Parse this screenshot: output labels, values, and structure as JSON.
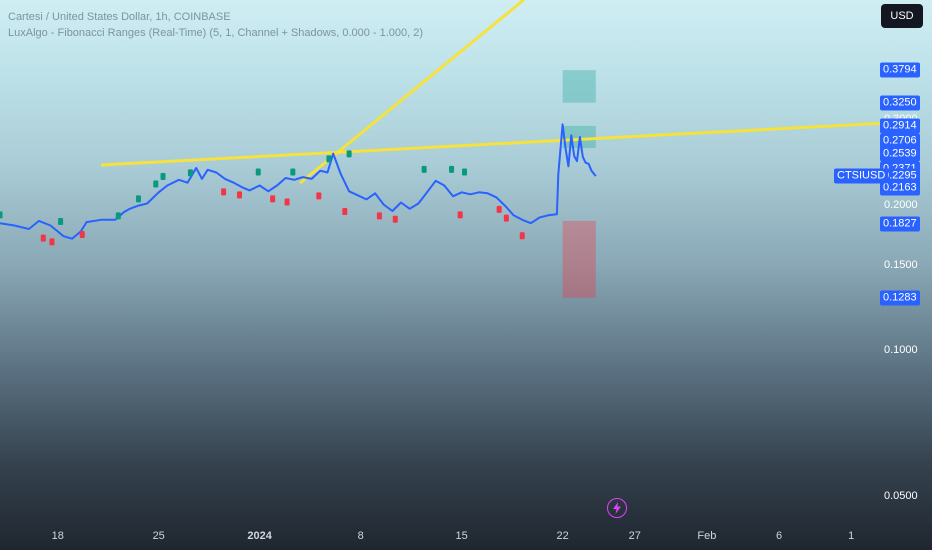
{
  "header": {
    "title": "Cartesi / United States Dollar, 1h, COINBASE",
    "indicator": "LuxAlgo - Fibonacci Ranges (Real-Time) (5, 1, Channel + Shadows, 0.000 - 1.000, 2)"
  },
  "currency_button": "USD",
  "colors": {
    "price_line": "#2962ff",
    "trendline": "#f5e23c",
    "marker_up": "#089981",
    "marker_down": "#f23645",
    "tag_background": "#2962ff",
    "bolt": "#e040fb"
  },
  "icons": [
    "lightning-bolt-icon"
  ],
  "chart_data": {
    "type": "line",
    "symbol": "CTSIUSD",
    "scale": "log",
    "current_price": "0.2295",
    "y_ticks": [
      "0.3000",
      "0.2000",
      "0.1500",
      "0.1000",
      "0.0500"
    ],
    "price_tags": [
      "0.3794",
      "0.3250",
      "0.2914",
      "0.2706",
      "0.2539",
      "0.2371",
      "0.2295",
      "0.2163",
      "0.1827",
      "0.1283"
    ],
    "x_ticks": [
      {
        "label": "18",
        "bold": false
      },
      {
        "label": "25",
        "bold": false
      },
      {
        "label": "2024",
        "bold": true
      },
      {
        "label": "8",
        "bold": false
      },
      {
        "label": "15",
        "bold": false
      },
      {
        "label": "22",
        "bold": false
      },
      {
        "label": "27",
        "bold": false
      },
      {
        "label": "Feb",
        "bold": false
      },
      {
        "label": "6",
        "bold": false
      },
      {
        "label": "1",
        "bold": false
      }
    ],
    "x_tick_days": [
      18,
      25,
      32,
      39,
      46,
      53,
      58,
      63,
      68,
      73
    ],
    "x_range_days": [
      14,
      75
    ],
    "y_range": [
      0.0445,
      0.53
    ],
    "series": [
      {
        "x": [
          14,
          15,
          16,
          16.7,
          17.5,
          18,
          18.4,
          19,
          19.6,
          20,
          21,
          22,
          22.6,
          23,
          23.6,
          24.2,
          25,
          25.6,
          26.4,
          27,
          27.6,
          28,
          28.4,
          29,
          29.6,
          30.2,
          30.8,
          31.3,
          32,
          32.6,
          33.2,
          33.8,
          34.4,
          35,
          35.6,
          36.2,
          36.7,
          37.1,
          37.6,
          38.2,
          38.8,
          39.4,
          40,
          40.6,
          41.2,
          41.8,
          42.4,
          43,
          43.6,
          44.2,
          44.8,
          45.4,
          46,
          46.6,
          47.2,
          47.8,
          48.4,
          49,
          49.6,
          50.2,
          50.8,
          51.4,
          52,
          52.6,
          52.7,
          53,
          53.2,
          53.4,
          53.6,
          53.8,
          54,
          54.2,
          54.4,
          54.6,
          54.8,
          55,
          55.3
        ],
        "y": [
          0.183,
          0.181,
          0.178,
          0.185,
          0.181,
          0.176,
          0.172,
          0.17,
          0.176,
          0.184,
          0.186,
          0.186,
          0.193,
          0.196,
          0.199,
          0.201,
          0.212,
          0.219,
          0.225,
          0.222,
          0.238,
          0.226,
          0.236,
          0.233,
          0.226,
          0.222,
          0.217,
          0.214,
          0.219,
          0.213,
          0.219,
          0.227,
          0.225,
          0.228,
          0.226,
          0.235,
          0.233,
          0.255,
          0.232,
          0.213,
          0.209,
          0.205,
          0.211,
          0.2,
          0.194,
          0.202,
          0.196,
          0.201,
          0.212,
          0.224,
          0.219,
          0.208,
          0.212,
          0.21,
          0.212,
          0.211,
          0.207,
          0.199,
          0.19,
          0.186,
          0.183,
          0.188,
          0.19,
          0.191,
          0.231,
          0.293,
          0.262,
          0.24,
          0.278,
          0.252,
          0.246,
          0.276,
          0.251,
          0.244,
          0.243,
          0.235,
          0.229
        ]
      }
    ],
    "trendlines": [
      {
        "from": [
          21,
          0.2415
        ],
        "to": [
          75,
          0.2945
        ]
      },
      {
        "from": [
          34.8,
          0.2215
        ],
        "to": [
          50.3,
          0.53
        ]
      }
    ],
    "markers_up": [
      [
        14,
        0.19
      ],
      [
        18.2,
        0.184
      ],
      [
        22.2,
        0.189
      ],
      [
        23.6,
        0.205
      ],
      [
        24.8,
        0.22
      ],
      [
        25.3,
        0.228
      ],
      [
        27.2,
        0.232
      ],
      [
        31.9,
        0.233
      ],
      [
        34.3,
        0.233
      ],
      [
        36.8,
        0.248
      ],
      [
        38.2,
        0.254
      ],
      [
        43.4,
        0.236
      ],
      [
        45.3,
        0.236
      ],
      [
        46.2,
        0.233
      ]
    ],
    "markers_down": [
      [
        17,
        0.17
      ],
      [
        17.6,
        0.167
      ],
      [
        19.7,
        0.173
      ],
      [
        29.5,
        0.212
      ],
      [
        30.6,
        0.209
      ],
      [
        32.9,
        0.205
      ],
      [
        33.9,
        0.202
      ],
      [
        36.1,
        0.208
      ],
      [
        37.9,
        0.193
      ],
      [
        40.3,
        0.189
      ],
      [
        41.4,
        0.186
      ],
      [
        45.9,
        0.19
      ],
      [
        48.6,
        0.195
      ],
      [
        49.1,
        0.187
      ],
      [
        50.2,
        0.172
      ]
    ],
    "fib_boxes": [
      {
        "x0": 53.0,
        "x1": 55.3,
        "y_top": 0.3794,
        "y_bottom": 0.325,
        "color": "#26a69a"
      },
      {
        "x0": 53.0,
        "x1": 55.3,
        "y_top": 0.291,
        "y_bottom": 0.262,
        "color": "#26a69a"
      },
      {
        "x0": 53.0,
        "x1": 55.3,
        "y_top": 0.185,
        "y_bottom": 0.1283,
        "color": "#f23645"
      }
    ]
  }
}
